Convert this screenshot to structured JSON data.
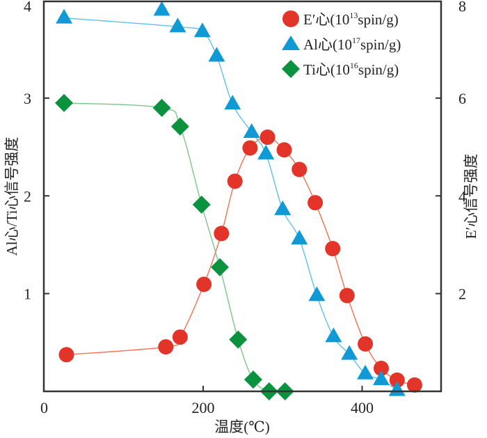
{
  "chart_data": {
    "type": "scatter",
    "title": "",
    "xlabel": "温度(℃)",
    "ylabel_left": "Al心/Ti心信号强度",
    "ylabel_right": "E′心信号强度",
    "xlim": [
      0,
      500
    ],
    "ylim_left": [
      0,
      4
    ],
    "ylim_right": [
      0,
      8
    ],
    "x_ticks": [
      0,
      200,
      400
    ],
    "y_ticks_left": [
      1,
      2,
      3,
      4
    ],
    "y_ticks_right": [
      2,
      4,
      6,
      8
    ],
    "grid": false,
    "legend_position": "top-right",
    "series": [
      {
        "name": "E′心",
        "legend_label": "E′心(10",
        "legend_exp": "13",
        "legend_unit": "spin/g)",
        "marker": "circle",
        "axis": "right",
        "color": "#e3342a",
        "line_color": "#f07050",
        "x": [
          28,
          153,
          171,
          201,
          223,
          240,
          259,
          281,
          302,
          321,
          341,
          363,
          381,
          404,
          424,
          444,
          466
        ],
        "y": [
          0.75,
          0.91,
          1.11,
          2.19,
          3.23,
          4.3,
          4.98,
          5.2,
          4.94,
          4.54,
          3.86,
          2.92,
          1.96,
          0.97,
          0.47,
          0.23,
          0.13
        ]
      },
      {
        "name": "Al心",
        "legend_label": "Al心(10",
        "legend_exp": "17",
        "legend_unit": "spin/g)",
        "marker": "triangle",
        "axis": "left",
        "color": "#0f9ad6",
        "line_color": "#5cc0ea",
        "line_x": [
          25,
          168,
          199,
          217,
          237,
          261,
          279,
          300,
          321,
          343,
          364,
          384,
          404,
          424,
          444
        ],
        "x": [
          25,
          148,
          168,
          199,
          217,
          237,
          261,
          279,
          300,
          321,
          343,
          364,
          384,
          404,
          424,
          444
        ],
        "y": [
          3.82,
          3.9,
          3.73,
          3.68,
          3.43,
          2.94,
          2.65,
          2.43,
          1.86,
          1.56,
          0.98,
          0.56,
          0.38,
          0.18,
          0.12,
          0.01
        ]
      },
      {
        "name": "Ti心",
        "legend_label": "Ti心(10",
        "legend_exp": "16",
        "legend_unit": "spin/g)",
        "marker": "diamond",
        "axis": "left",
        "color": "#0a923e",
        "line_color": "#7cc48a",
        "x": [
          25,
          148,
          171,
          198,
          221,
          244,
          263,
          283,
          303
        ],
        "y": [
          2.95,
          2.9,
          2.71,
          1.91,
          1.27,
          0.53,
          0.12,
          0.0,
          0.0
        ]
      }
    ]
  }
}
